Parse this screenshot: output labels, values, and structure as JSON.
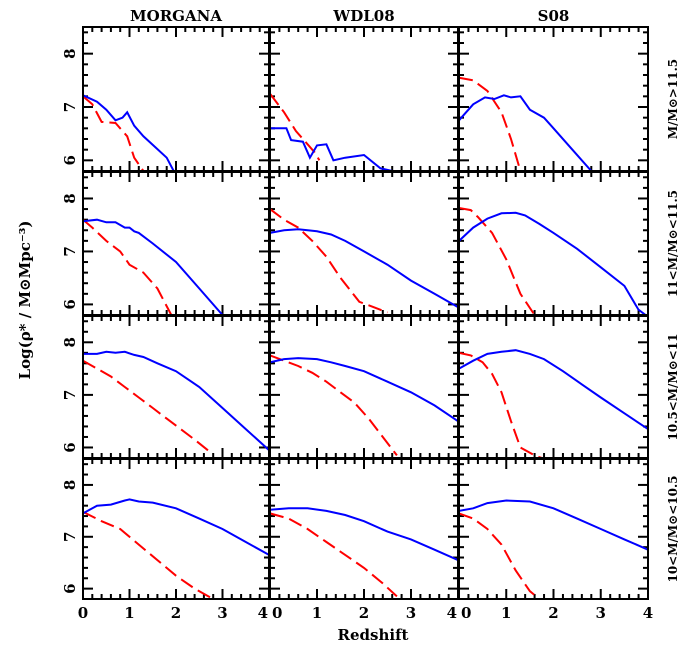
{
  "chart_data": {
    "type": "line",
    "xlabel": "Redshift",
    "ylabel": "Log(ρ* / M⊙Mpc⁻³)",
    "xlim": [
      0,
      4
    ],
    "ylim": [
      5.8,
      8.5
    ],
    "x_ticks": [
      "0",
      "1",
      "2",
      "3",
      "4"
    ],
    "y_ticks": [
      "6",
      "7",
      "8"
    ],
    "columns": [
      "MORGANA",
      "WDL08",
      "S08"
    ],
    "rows": [
      "M/M⊙>11.5",
      "11<M/M⊙<11.5",
      "10.5<M/M⊙<11",
      "10<M/M⊙<10.5"
    ],
    "series_colors": {
      "solid": "#0000ff",
      "dashed": "#ff0000"
    },
    "panels": [
      [
        {
          "solid": [
            [
              0,
              7.22
            ],
            [
              0.3,
              7.1
            ],
            [
              0.5,
              6.95
            ],
            [
              0.7,
              6.75
            ],
            [
              0.85,
              6.8
            ],
            [
              0.95,
              6.9
            ],
            [
              1.1,
              6.65
            ],
            [
              1.3,
              6.45
            ],
            [
              1.55,
              6.25
            ],
            [
              1.8,
              6.05
            ],
            [
              1.95,
              5.8
            ]
          ],
          "dashed": [
            [
              0,
              7.2
            ],
            [
              0.2,
              7.05
            ],
            [
              0.4,
              6.72
            ],
            [
              0.7,
              6.7
            ],
            [
              0.95,
              6.45
            ],
            [
              1.1,
              6.05
            ],
            [
              1.3,
              5.8
            ]
          ]
        },
        {
          "solid": [
            [
              0,
              6.6
            ],
            [
              0.35,
              6.6
            ],
            [
              0.45,
              6.38
            ],
            [
              0.7,
              6.35
            ],
            [
              0.85,
              6.05
            ],
            [
              1.0,
              6.28
            ],
            [
              1.2,
              6.3
            ],
            [
              1.35,
              6.0
            ],
            [
              1.6,
              6.05
            ],
            [
              2.0,
              6.1
            ],
            [
              2.35,
              5.85
            ],
            [
              2.6,
              5.8
            ]
          ],
          "dashed": [
            [
              0,
              7.25
            ],
            [
              0.3,
              6.9
            ],
            [
              0.55,
              6.55
            ],
            [
              0.8,
              6.3
            ],
            [
              0.95,
              6.15
            ],
            [
              1.05,
              6.0
            ]
          ]
        },
        {
          "solid": [
            [
              0,
              6.75
            ],
            [
              0.3,
              7.05
            ],
            [
              0.55,
              7.18
            ],
            [
              0.75,
              7.15
            ],
            [
              0.95,
              7.22
            ],
            [
              1.1,
              7.18
            ],
            [
              1.3,
              7.2
            ],
            [
              1.5,
              6.95
            ],
            [
              1.8,
              6.8
            ],
            [
              2.0,
              6.6
            ],
            [
              2.4,
              6.2
            ],
            [
              2.8,
              5.8
            ]
          ],
          "dashed": [
            [
              0,
              7.55
            ],
            [
              0.3,
              7.5
            ],
            [
              0.6,
              7.3
            ],
            [
              0.9,
              6.9
            ],
            [
              1.1,
              6.4
            ],
            [
              1.3,
              5.8
            ]
          ]
        }
      ],
      [
        {
          "solid": [
            [
              0,
              7.57
            ],
            [
              0.3,
              7.6
            ],
            [
              0.5,
              7.55
            ],
            [
              0.7,
              7.55
            ],
            [
              0.9,
              7.45
            ],
            [
              1.0,
              7.45
            ],
            [
              1.1,
              7.38
            ],
            [
              1.2,
              7.35
            ],
            [
              1.5,
              7.15
            ],
            [
              2.0,
              6.8
            ],
            [
              2.5,
              6.3
            ],
            [
              3.0,
              5.8
            ]
          ],
          "dashed": [
            [
              0,
              7.6
            ],
            [
              0.2,
              7.45
            ],
            [
              0.5,
              7.2
            ],
            [
              0.8,
              7.0
            ],
            [
              1.0,
              6.75
            ],
            [
              1.3,
              6.6
            ],
            [
              1.6,
              6.3
            ],
            [
              1.9,
              5.8
            ]
          ]
        },
        {
          "solid": [
            [
              0,
              7.35
            ],
            [
              0.3,
              7.4
            ],
            [
              0.6,
              7.42
            ],
            [
              0.8,
              7.4
            ],
            [
              1.0,
              7.38
            ],
            [
              1.3,
              7.32
            ],
            [
              1.6,
              7.2
            ],
            [
              2.0,
              7.0
            ],
            [
              2.5,
              6.75
            ],
            [
              3.0,
              6.45
            ],
            [
              3.5,
              6.2
            ],
            [
              4.0,
              5.95
            ]
          ],
          "dashed": [
            [
              0,
              7.8
            ],
            [
              0.3,
              7.6
            ],
            [
              0.6,
              7.45
            ],
            [
              0.9,
              7.2
            ],
            [
              1.2,
              6.9
            ],
            [
              1.5,
              6.5
            ],
            [
              1.9,
              6.05
            ],
            [
              2.2,
              5.95
            ],
            [
              2.5,
              5.85
            ]
          ]
        },
        {
          "solid": [
            [
              0,
              7.2
            ],
            [
              0.3,
              7.45
            ],
            [
              0.6,
              7.62
            ],
            [
              0.9,
              7.72
            ],
            [
              1.2,
              7.73
            ],
            [
              1.4,
              7.68
            ],
            [
              1.7,
              7.52
            ],
            [
              2.0,
              7.35
            ],
            [
              2.5,
              7.05
            ],
            [
              3.0,
              6.7
            ],
            [
              3.5,
              6.35
            ],
            [
              3.8,
              5.9
            ],
            [
              3.95,
              5.8
            ]
          ],
          "dashed": [
            [
              0,
              7.82
            ],
            [
              0.25,
              7.78
            ],
            [
              0.4,
              7.65
            ],
            [
              0.7,
              7.35
            ],
            [
              1.0,
              6.85
            ],
            [
              1.3,
              6.2
            ],
            [
              1.6,
              5.8
            ]
          ]
        }
      ],
      [
        {
          "solid": [
            [
              0,
              7.78
            ],
            [
              0.3,
              7.78
            ],
            [
              0.5,
              7.82
            ],
            [
              0.7,
              7.8
            ],
            [
              0.9,
              7.82
            ],
            [
              1.1,
              7.76
            ],
            [
              1.3,
              7.72
            ],
            [
              1.6,
              7.6
            ],
            [
              2.0,
              7.45
            ],
            [
              2.5,
              7.15
            ],
            [
              3.0,
              6.75
            ],
            [
              3.5,
              6.35
            ],
            [
              4.0,
              5.95
            ]
          ],
          "dashed": [
            [
              0,
              7.65
            ],
            [
              0.3,
              7.5
            ],
            [
              0.6,
              7.35
            ],
            [
              0.9,
              7.15
            ],
            [
              1.2,
              6.95
            ],
            [
              1.5,
              6.75
            ],
            [
              1.8,
              6.55
            ],
            [
              2.1,
              6.35
            ],
            [
              2.4,
              6.15
            ],
            [
              2.75,
              5.9
            ]
          ]
        },
        {
          "solid": [
            [
              0,
              7.62
            ],
            [
              0.3,
              7.68
            ],
            [
              0.6,
              7.7
            ],
            [
              1.0,
              7.68
            ],
            [
              1.3,
              7.62
            ],
            [
              1.6,
              7.55
            ],
            [
              2.0,
              7.45
            ],
            [
              2.5,
              7.25
            ],
            [
              3.0,
              7.05
            ],
            [
              3.5,
              6.8
            ],
            [
              4.0,
              6.5
            ]
          ],
          "dashed": [
            [
              0,
              7.75
            ],
            [
              0.3,
              7.65
            ],
            [
              0.6,
              7.55
            ],
            [
              0.9,
              7.42
            ],
            [
              1.2,
              7.25
            ],
            [
              1.5,
              7.05
            ],
            [
              1.8,
              6.85
            ],
            [
              2.1,
              6.55
            ],
            [
              2.4,
              6.2
            ],
            [
              2.7,
              5.85
            ]
          ]
        },
        {
          "solid": [
            [
              0,
              7.5
            ],
            [
              0.3,
              7.65
            ],
            [
              0.6,
              7.78
            ],
            [
              0.9,
              7.82
            ],
            [
              1.2,
              7.85
            ],
            [
              1.5,
              7.78
            ],
            [
              1.8,
              7.68
            ],
            [
              2.2,
              7.45
            ],
            [
              2.6,
              7.2
            ],
            [
              3.0,
              6.95
            ],
            [
              3.5,
              6.65
            ],
            [
              4.0,
              6.35
            ]
          ],
          "dashed": [
            [
              0,
              7.8
            ],
            [
              0.25,
              7.75
            ],
            [
              0.5,
              7.62
            ],
            [
              0.7,
              7.4
            ],
            [
              0.9,
              7.05
            ],
            [
              1.1,
              6.5
            ],
            [
              1.3,
              6.0
            ],
            [
              1.6,
              5.85
            ],
            [
              1.75,
              5.8
            ]
          ]
        }
      ],
      [
        {
          "solid": [
            [
              0,
              7.45
            ],
            [
              0.3,
              7.6
            ],
            [
              0.6,
              7.62
            ],
            [
              0.9,
              7.7
            ],
            [
              1.0,
              7.72
            ],
            [
              1.2,
              7.68
            ],
            [
              1.5,
              7.66
            ],
            [
              2.0,
              7.55
            ],
            [
              2.5,
              7.35
            ],
            [
              3.0,
              7.15
            ],
            [
              3.5,
              6.9
            ],
            [
              4.0,
              6.65
            ]
          ],
          "dashed": [
            [
              0,
              7.48
            ],
            [
              0.4,
              7.3
            ],
            [
              0.8,
              7.15
            ],
            [
              1.2,
              6.85
            ],
            [
              1.6,
              6.55
            ],
            [
              2.0,
              6.25
            ],
            [
              2.4,
              6.0
            ],
            [
              2.8,
              5.8
            ]
          ]
        },
        {
          "solid": [
            [
              0,
              7.52
            ],
            [
              0.4,
              7.55
            ],
            [
              0.8,
              7.55
            ],
            [
              1.2,
              7.5
            ],
            [
              1.6,
              7.42
            ],
            [
              2.0,
              7.3
            ],
            [
              2.5,
              7.1
            ],
            [
              3.0,
              6.95
            ],
            [
              3.5,
              6.75
            ],
            [
              4.0,
              6.55
            ]
          ],
          "dashed": [
            [
              0,
              7.45
            ],
            [
              0.4,
              7.35
            ],
            [
              0.8,
              7.15
            ],
            [
              1.2,
              6.9
            ],
            [
              1.6,
              6.65
            ],
            [
              2.0,
              6.4
            ],
            [
              2.4,
              6.1
            ],
            [
              2.7,
              5.85
            ]
          ]
        },
        {
          "solid": [
            [
              0,
              7.5
            ],
            [
              0.3,
              7.55
            ],
            [
              0.6,
              7.65
            ],
            [
              1.0,
              7.7
            ],
            [
              1.5,
              7.68
            ],
            [
              2.0,
              7.55
            ],
            [
              2.5,
              7.35
            ],
            [
              3.0,
              7.15
            ],
            [
              3.5,
              6.95
            ],
            [
              4.0,
              6.75
            ]
          ],
          "dashed": [
            [
              0,
              7.45
            ],
            [
              0.3,
              7.35
            ],
            [
              0.6,
              7.15
            ],
            [
              0.9,
              6.85
            ],
            [
              1.2,
              6.35
            ],
            [
              1.5,
              5.95
            ],
            [
              1.7,
              5.8
            ]
          ]
        }
      ]
    ]
  }
}
